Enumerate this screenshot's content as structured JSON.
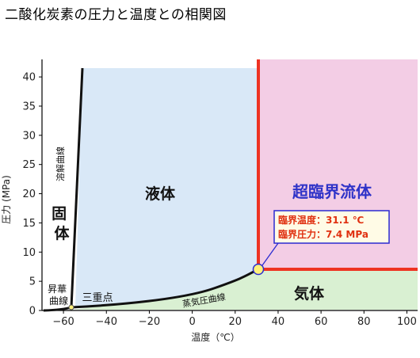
{
  "title": "二酸化炭素の圧力と温度との相関図",
  "chart": {
    "xlabel": "温度（℃）",
    "ylabel": "圧力 (MPa)",
    "xlim": [
      -70,
      105
    ],
    "ylim": [
      0,
      43
    ],
    "xticks": [
      -60,
      -40,
      -20,
      0,
      20,
      40,
      60,
      80,
      100
    ],
    "xtick_labels": [
      "−60",
      "−40",
      "−20",
      "0",
      "20",
      "40",
      "60",
      "80",
      "100"
    ],
    "yticks": [
      0,
      5,
      10,
      15,
      20,
      25,
      30,
      35,
      40
    ],
    "ytick_labels": [
      "0",
      "5",
      "10",
      "15",
      "20",
      "25",
      "30",
      "35",
      "40"
    ]
  },
  "regions": {
    "solid": "固\n体",
    "liquid": "液体",
    "gas": "気体",
    "supercritical": "超臨界流体"
  },
  "curves": {
    "melting": "溶解曲線",
    "sublimation": "昇華\n曲線",
    "vapor": "蒸気圧曲線",
    "triple_point": "三重点"
  },
  "critical_point": {
    "temperature_c": 31.1,
    "pressure_mpa": 7.4,
    "temperature_label": "臨界温度：31.1 ℃",
    "pressure_label": "臨界圧力：7.4 MPa"
  },
  "triple_point": {
    "temperature_c": -56.6,
    "pressure_mpa": 0.52
  },
  "colors": {
    "liquid": "#d9e8f7",
    "supercritical": "#f3cde5",
    "gas": "#d9f0d2",
    "boundary": "#ee3322",
    "curve": "#111111",
    "callout_border": "#2b2bd1",
    "callout_text": "#e03010",
    "supercritical_text": "#2f33c8",
    "critical_point": "#fff27a"
  }
}
